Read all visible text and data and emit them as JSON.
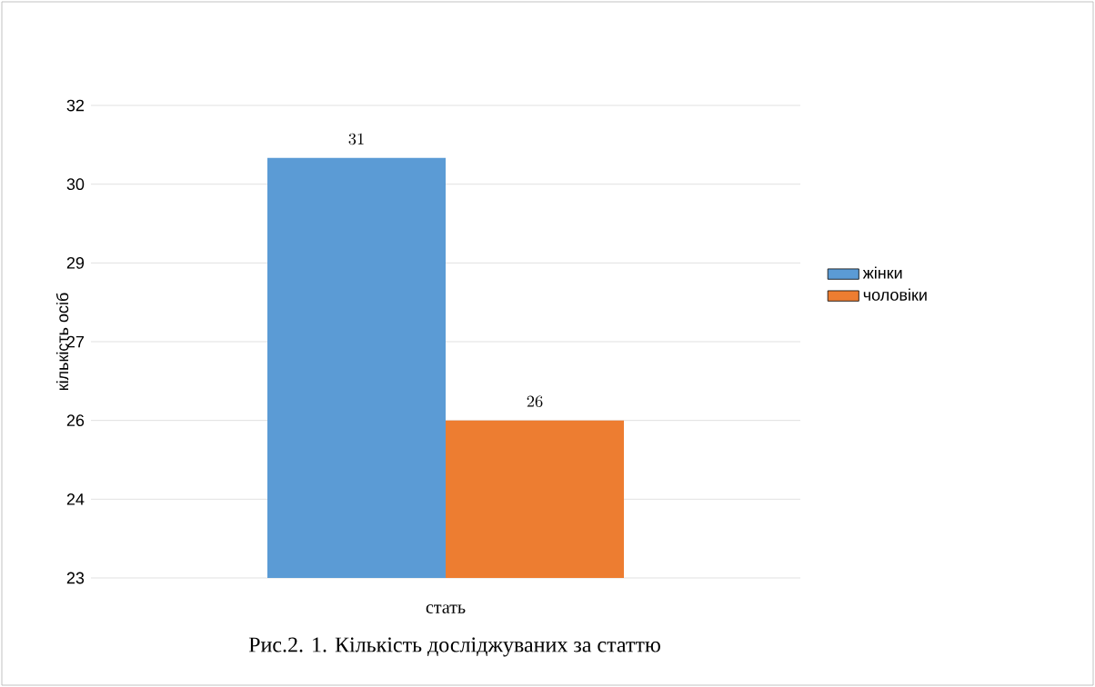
{
  "chart_data": {
    "type": "bar",
    "categories": [
      null
    ],
    "xlabel": "стать",
    "ylabel": "кількість осіб",
    "series": [
      {
        "name": "жінки",
        "color": "#5b9bd5",
        "values": [
          31
        ]
      },
      {
        "name": "чоловіки",
        "color": "#ed7d31",
        "values": [
          26
        ]
      }
    ],
    "ylim": [
      23,
      32
    ],
    "yticks": [
      23,
      {
        "value": 24.5,
        "label": "24"
      },
      26,
      {
        "value": 27.5,
        "label": "27"
      },
      29,
      {
        "value": 30.5,
        "label": "30"
      },
      32
    ],
    "grid": "y",
    "legend": "right",
    "data_labels": true,
    "annotations": [
      "Рис.2. 1. Кількість досліджуваних за статтю"
    ]
  }
}
